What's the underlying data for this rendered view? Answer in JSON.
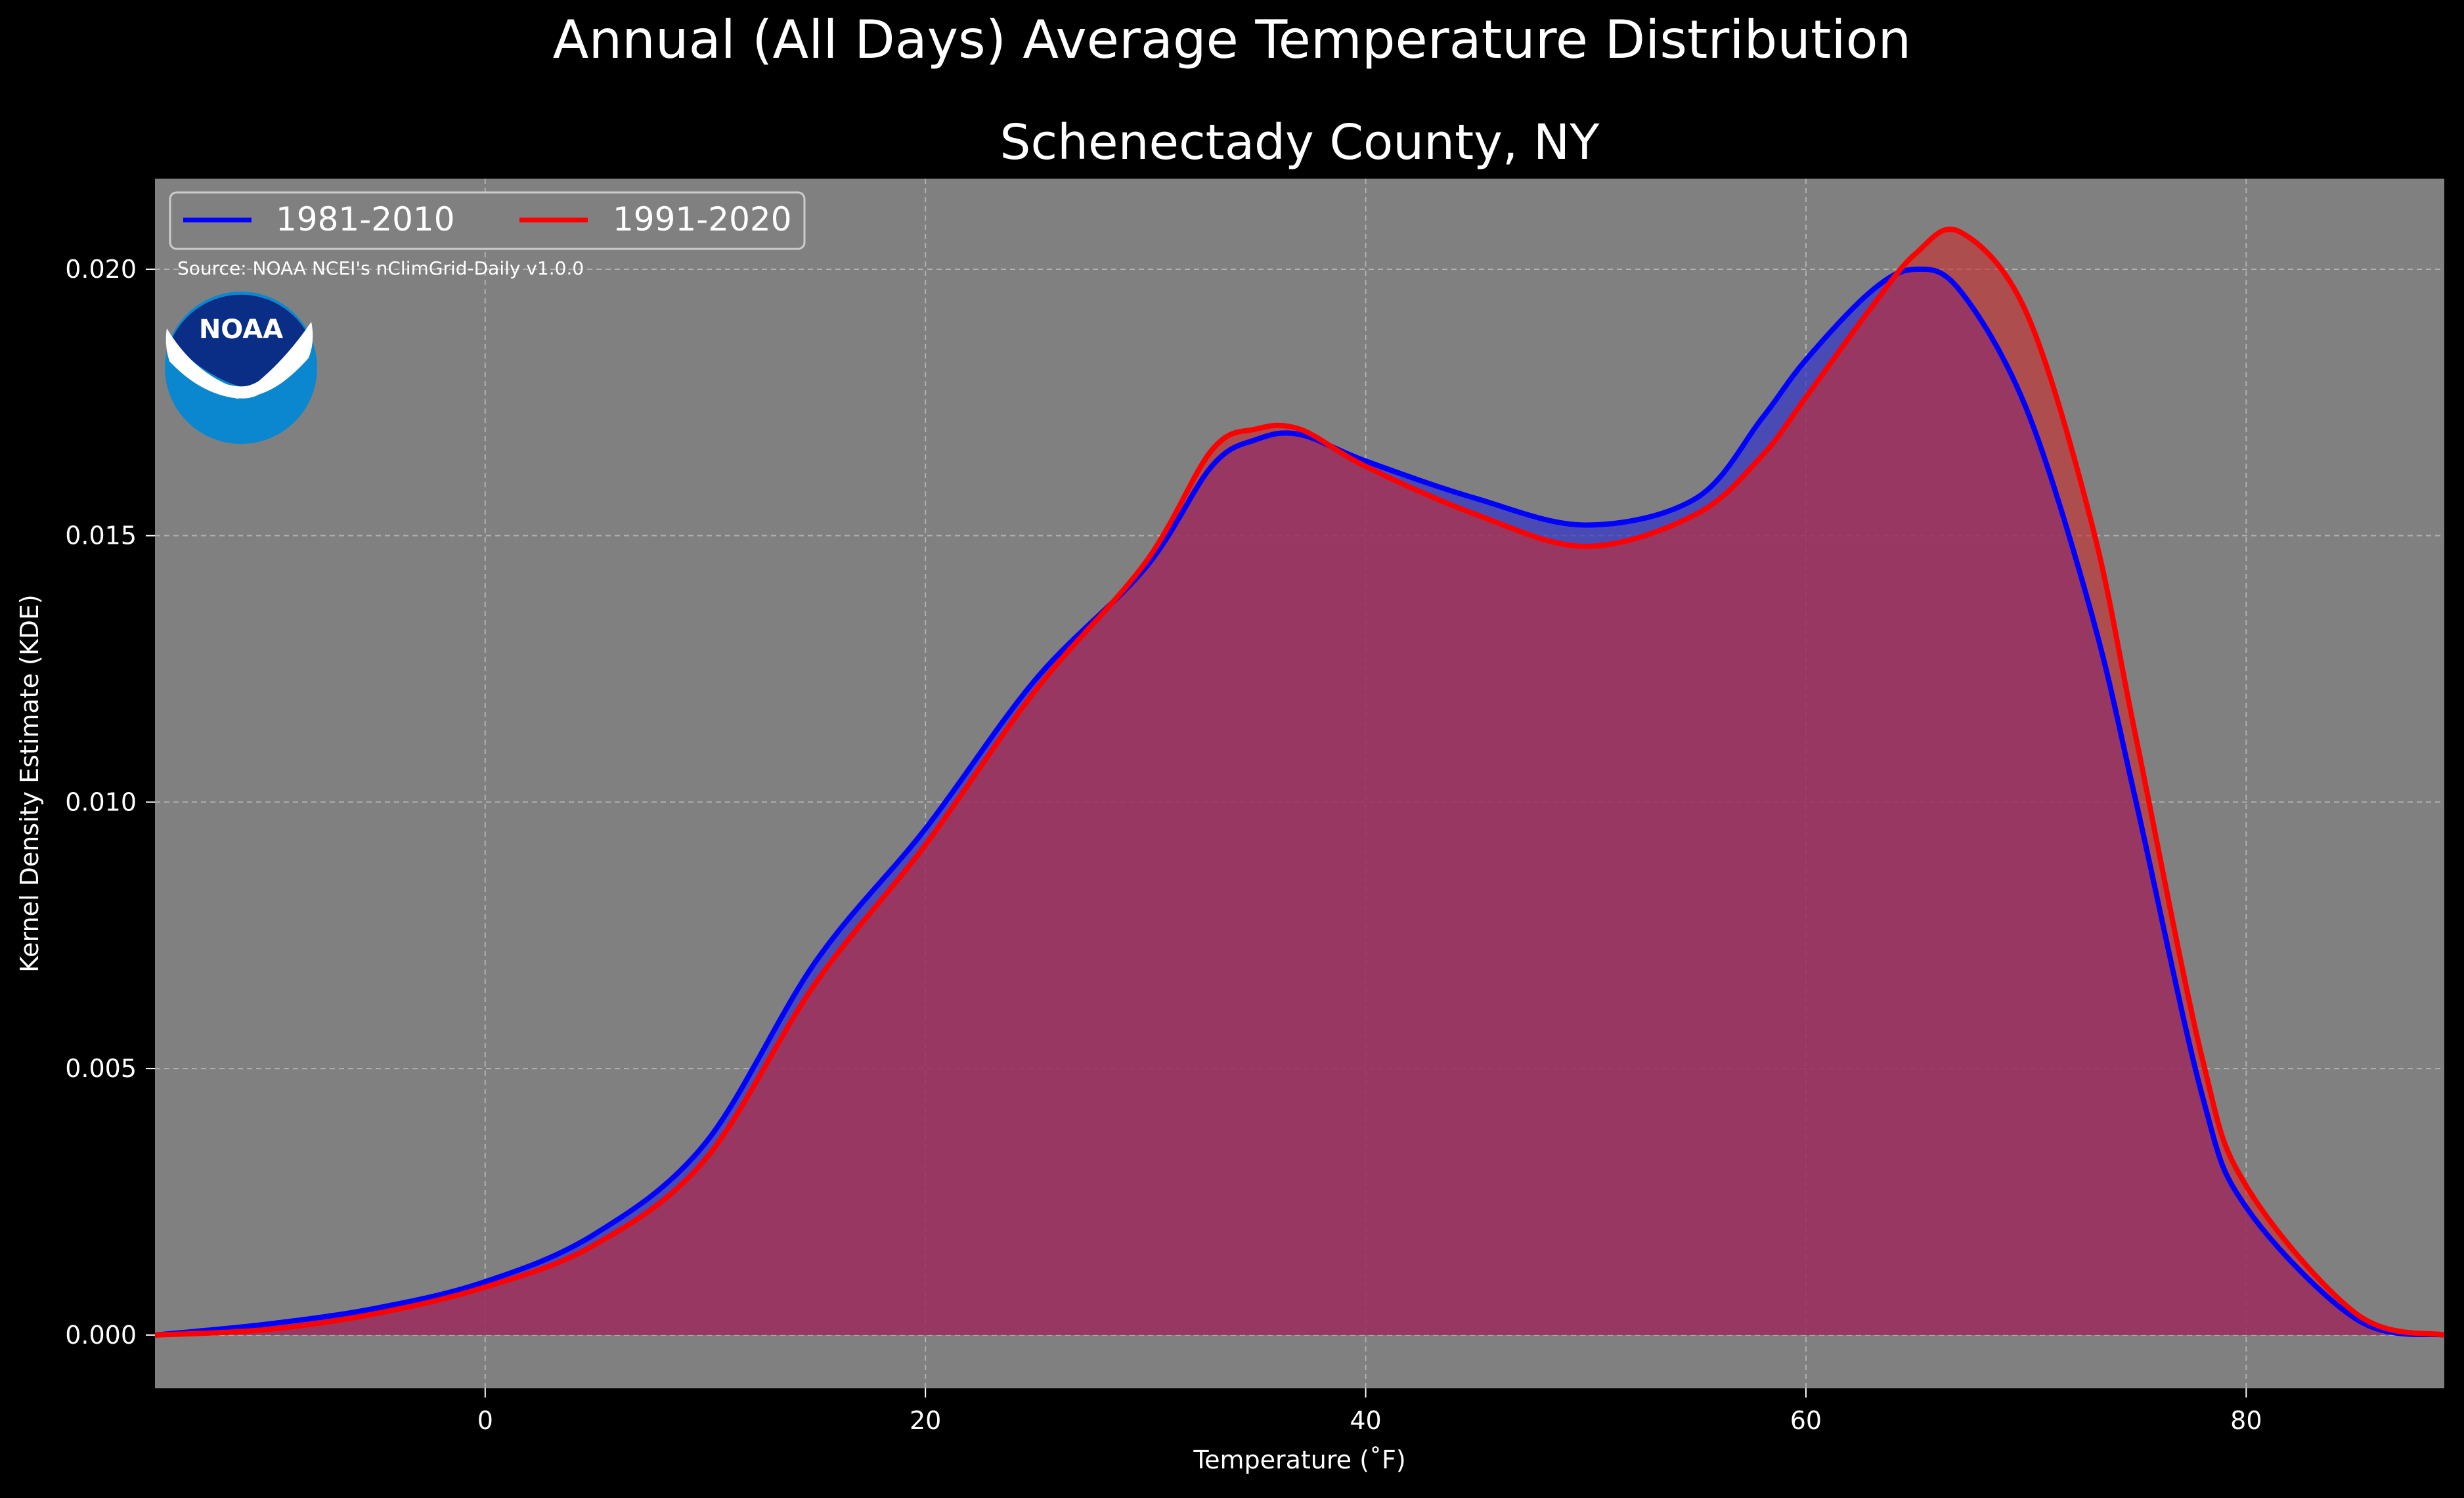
{
  "suptitle": "Annual (All Days) Average Temperature Distribution",
  "chart_data": {
    "type": "area",
    "title": "Schenectady County, NY",
    "xlabel": "Temperature ($^\\circ$F)",
    "xlabel_display": "Temperature (˚F)",
    "ylabel": "Kernel Density Estimate (KDE)",
    "xlim": [
      -15,
      89
    ],
    "ylim": [
      -0.001,
      0.0217
    ],
    "xticks": [
      0,
      20,
      40,
      60,
      80
    ],
    "xtick_labels": [
      "0",
      "20",
      "40",
      "60",
      "80"
    ],
    "yticks": [
      0.0,
      0.005,
      0.01,
      0.015,
      0.02
    ],
    "ytick_labels": [
      "0.000",
      "0.005",
      "0.010",
      "0.015",
      "0.020"
    ],
    "grid": true,
    "legend_position": "top-left",
    "background_color": "#808080",
    "figure_color": "#000000",
    "source": "Source: NOAA NCEI's nClimGrid-Daily v1.0.0",
    "logo_text": "NOAA",
    "series": [
      {
        "name": "1981-2010",
        "color": "#0000ff",
        "fill": "#3333cc",
        "x": [
          -15,
          -10,
          -5,
          0,
          5,
          10,
          15,
          20,
          25,
          30,
          33,
          35,
          37,
          40,
          45,
          50,
          55,
          58,
          60,
          63,
          65,
          67,
          70,
          73,
          75,
          78,
          80,
          85,
          89
        ],
        "y": [
          0.0,
          0.0002,
          0.0005,
          0.001,
          0.0019,
          0.0036,
          0.007,
          0.0095,
          0.0123,
          0.0144,
          0.0163,
          0.0168,
          0.0169,
          0.0164,
          0.0157,
          0.0152,
          0.0157,
          0.0172,
          0.0183,
          0.0196,
          0.02,
          0.0196,
          0.0174,
          0.0135,
          0.01,
          0.0045,
          0.0024,
          0.0003,
          0.0
        ]
      },
      {
        "name": "1991-2020",
        "color": "#ff0000",
        "fill": "#cc2b2b",
        "x": [
          -15,
          -10,
          -5,
          0,
          5,
          10,
          15,
          20,
          25,
          30,
          33,
          35,
          37,
          40,
          45,
          50,
          55,
          58,
          60,
          63,
          65,
          67,
          70,
          73,
          75,
          78,
          80,
          85,
          89
        ],
        "y": [
          0.0,
          0.0001,
          0.0004,
          0.0009,
          0.0017,
          0.0033,
          0.0066,
          0.0092,
          0.0121,
          0.0145,
          0.0166,
          0.017,
          0.017,
          0.0163,
          0.0154,
          0.0148,
          0.0154,
          0.0165,
          0.0176,
          0.0193,
          0.0203,
          0.0207,
          0.0192,
          0.0152,
          0.0112,
          0.0052,
          0.0028,
          0.0004,
          0.0
        ]
      }
    ]
  }
}
